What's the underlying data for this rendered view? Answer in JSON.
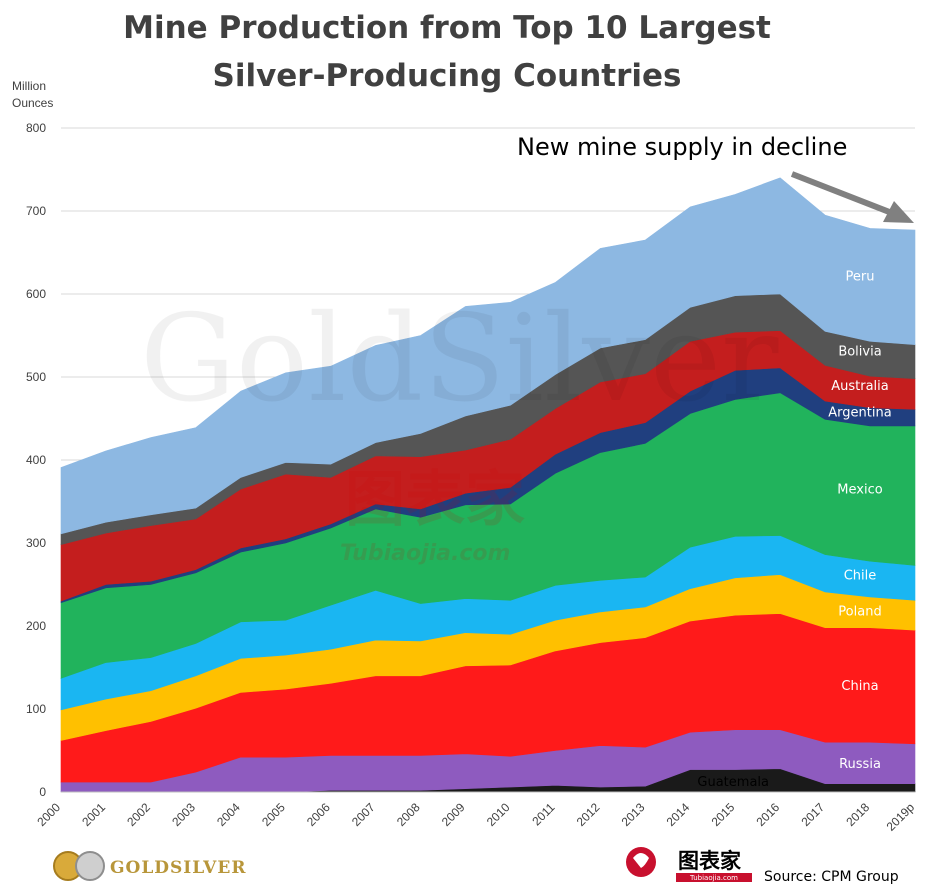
{
  "chart_data": {
    "type": "area",
    "stacked": true,
    "title_lines": [
      "Mine Production from Top 10 Largest",
      "Silver-Producing  Countries"
    ],
    "ylabel_lines": [
      "Million",
      "Ounces"
    ],
    "ylim": [
      0,
      800
    ],
    "yticks": [
      "0",
      "100",
      "200",
      "300",
      "400",
      "500",
      "600",
      "700",
      "800"
    ],
    "categories": [
      "2000",
      "2001",
      "2002",
      "2003",
      "2004",
      "2005",
      "2006",
      "2007",
      "2008",
      "2009",
      "2010",
      "2011",
      "2012",
      "2013",
      "2014",
      "2015",
      "2016",
      "2017",
      "2018",
      "2019p"
    ],
    "series": [
      {
        "name": "Guatemala",
        "color": "#1a1a1a",
        "label_dark": true,
        "values": [
          0,
          0,
          0,
          0,
          0,
          0,
          2,
          2,
          2,
          4,
          6,
          8,
          6,
          7,
          27,
          27,
          28,
          10,
          10,
          10
        ]
      },
      {
        "name": "Russia",
        "color": "#8e5bbf",
        "values": [
          12,
          12,
          12,
          24,
          42,
          42,
          42,
          42,
          42,
          42,
          37,
          42,
          50,
          47,
          45,
          48,
          47,
          50,
          50,
          48
        ]
      },
      {
        "name": "China",
        "color": "#ff1a1a",
        "values": [
          50,
          62,
          73,
          77,
          78,
          82,
          87,
          96,
          96,
          106,
          110,
          120,
          124,
          132,
          134,
          138,
          140,
          138,
          138,
          137
        ]
      },
      {
        "name": "Poland",
        "color": "#ffc000",
        "values": [
          37,
          38,
          37,
          39,
          41,
          41,
          41,
          43,
          42,
          40,
          37,
          37,
          37,
          37,
          39,
          45,
          47,
          43,
          37,
          36
        ]
      },
      {
        "name": "Chile",
        "color": "#1ab6f2",
        "values": [
          38,
          44,
          40,
          39,
          44,
          42,
          53,
          60,
          45,
          41,
          41,
          42,
          38,
          36,
          50,
          50,
          47,
          45,
          43,
          42
        ]
      },
      {
        "name": "Mexico",
        "color": "#21b35c",
        "values": [
          91,
          90,
          88,
          85,
          84,
          93,
          93,
          98,
          104,
          113,
          116,
          135,
          154,
          161,
          161,
          165,
          172,
          163,
          163,
          168
        ]
      },
      {
        "name": "Argentina",
        "color": "#203f7f",
        "values": [
          2,
          4,
          4,
          4,
          5,
          5,
          5,
          6,
          10,
          14,
          20,
          23,
          24,
          25,
          27,
          35,
          30,
          22,
          22,
          20
        ]
      },
      {
        "name": "Australia",
        "color": "#c41e1e",
        "values": [
          68,
          62,
          67,
          61,
          71,
          78,
          56,
          58,
          63,
          52,
          58,
          55,
          61,
          59,
          60,
          46,
          45,
          43,
          38,
          37
        ]
      },
      {
        "name": "Bolivia",
        "color": "#555555",
        "values": [
          13,
          13,
          13,
          13,
          14,
          14,
          16,
          16,
          28,
          41,
          41,
          41,
          41,
          41,
          41,
          44,
          44,
          41,
          42,
          41
        ]
      },
      {
        "name": "Peru",
        "color": "#8db8e2",
        "values": [
          80,
          86,
          93,
          97,
          104,
          108,
          118,
          117,
          118,
          132,
          124,
          111,
          120,
          120,
          121,
          122,
          140,
          140,
          136,
          138
        ]
      }
    ],
    "annotation": "New mine supply in decline",
    "source": "Source: CPM Group"
  },
  "branding": {
    "left_logo": "GOLDSILVER",
    "right_logo_cn": "图表家",
    "right_logo_sub": "Tubiaojia.com",
    "watermark_main": "GoldSilver",
    "watermark_cn": "图表家",
    "watermark_url": "Tubiaojia.com"
  }
}
